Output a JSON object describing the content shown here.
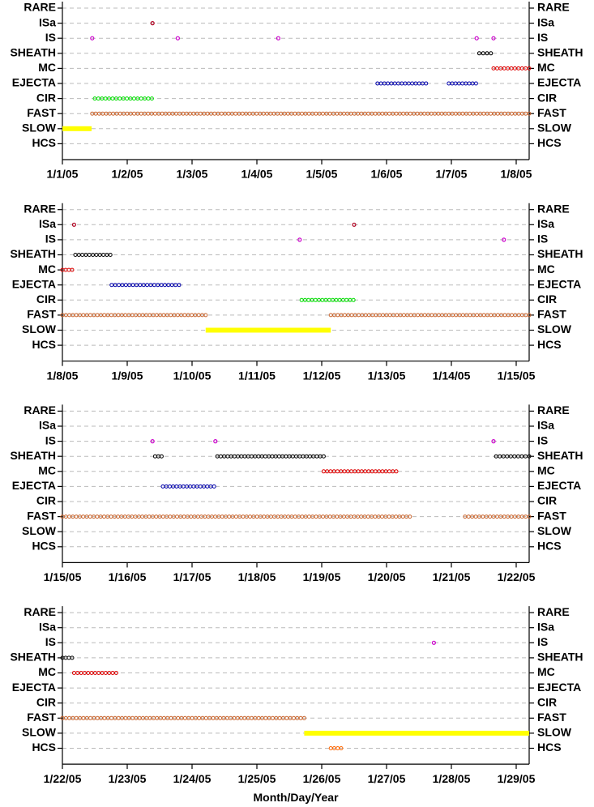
{
  "chart_data": [
    {
      "type": "timeline",
      "categories": [
        "RARE",
        "ISa",
        "IS",
        "SHEATH",
        "MC",
        "EJECTA",
        "CIR",
        "FAST",
        "SLOW",
        "HCS"
      ],
      "xlim": [
        0,
        7.2
      ],
      "xticks": [
        {
          "value": 0,
          "label": "1/1/05"
        },
        {
          "value": 1,
          "label": "1/2/05"
        },
        {
          "value": 2,
          "label": "1/3/05"
        },
        {
          "value": 3,
          "label": "1/4/05"
        },
        {
          "value": 4,
          "label": "1/5/05"
        },
        {
          "value": 5,
          "label": "1/6/05"
        },
        {
          "value": 6,
          "label": "1/7/05"
        },
        {
          "value": 7,
          "label": "1/8/05"
        }
      ],
      "grid": true,
      "series": [
        {
          "row": 1,
          "color": "#b00020",
          "points": [
            1.39
          ]
        },
        {
          "row": 2,
          "color": "#cc00cc",
          "points": [
            0.46,
            1.78,
            3.33,
            6.39,
            6.65
          ]
        },
        {
          "row": 3,
          "color": "#000000",
          "intervals": [
            [
              6.43,
              6.61
            ]
          ]
        },
        {
          "row": 4,
          "color": "#dd0000",
          "intervals": [
            [
              6.65,
              7.2
            ]
          ]
        },
        {
          "row": 5,
          "color": "#0000aa",
          "intervals": [
            [
              4.86,
              5.61
            ],
            [
              5.96,
              6.38
            ]
          ]
        },
        {
          "row": 6,
          "color": "#00dd00",
          "intervals": [
            [
              0.5,
              1.38
            ]
          ]
        },
        {
          "row": 7,
          "color": "#c8642d",
          "intervals": [
            [
              0.46,
              7.2
            ]
          ]
        },
        {
          "row": 8,
          "color": "#ffff00",
          "filled": true,
          "intervals": [
            [
              0,
              0.45
            ]
          ]
        }
      ]
    },
    {
      "type": "timeline",
      "categories": [
        "RARE",
        "ISa",
        "IS",
        "SHEATH",
        "MC",
        "EJECTA",
        "CIR",
        "FAST",
        "SLOW",
        "HCS"
      ],
      "xlim": [
        7,
        14.2
      ],
      "xticks": [
        {
          "value": 7,
          "label": "1/8/05"
        },
        {
          "value": 8,
          "label": "1/9/05"
        },
        {
          "value": 9,
          "label": "1/10/05"
        },
        {
          "value": 10,
          "label": "1/11/05"
        },
        {
          "value": 11,
          "label": "1/12/05"
        },
        {
          "value": 12,
          "label": "1/13/05"
        },
        {
          "value": 13,
          "label": "1/14/05"
        },
        {
          "value": 14,
          "label": "1/15/05"
        }
      ],
      "grid": true,
      "series": [
        {
          "row": 1,
          "color": "#b00020",
          "points": [
            7.18,
            11.5
          ]
        },
        {
          "row": 2,
          "color": "#cc00cc",
          "points": [
            10.66,
            13.81
          ]
        },
        {
          "row": 3,
          "color": "#000000",
          "intervals": [
            [
              7.2,
              7.74
            ]
          ]
        },
        {
          "row": 4,
          "color": "#dd0000",
          "intervals": [
            [
              7,
              7.15
            ]
          ]
        },
        {
          "row": 5,
          "color": "#0000aa",
          "intervals": [
            [
              7.76,
              8.8
            ]
          ]
        },
        {
          "row": 6,
          "color": "#00dd00",
          "intervals": [
            [
              10.69,
              11.49
            ]
          ]
        },
        {
          "row": 7,
          "color": "#c8642d",
          "intervals": [
            [
              7,
              9.21
            ],
            [
              11.14,
              14.2
            ]
          ]
        },
        {
          "row": 8,
          "color": "#ffff00",
          "filled": true,
          "intervals": [
            [
              9.21,
              11.14
            ]
          ]
        }
      ]
    },
    {
      "type": "timeline",
      "categories": [
        "RARE",
        "ISa",
        "IS",
        "SHEATH",
        "MC",
        "EJECTA",
        "CIR",
        "FAST",
        "SLOW",
        "HCS"
      ],
      "xlim": [
        14,
        21.2
      ],
      "xticks": [
        {
          "value": 14,
          "label": "1/15/05"
        },
        {
          "value": 15,
          "label": "1/16/05"
        },
        {
          "value": 16,
          "label": "1/17/05"
        },
        {
          "value": 17,
          "label": "1/18/05"
        },
        {
          "value": 18,
          "label": "1/19/05"
        },
        {
          "value": 19,
          "label": "1/20/05"
        },
        {
          "value": 20,
          "label": "1/21/05"
        },
        {
          "value": 21,
          "label": "1/22/05"
        }
      ],
      "grid": true,
      "series": [
        {
          "row": 2,
          "color": "#cc00cc",
          "points": [
            15.39,
            16.36,
            20.65
          ]
        },
        {
          "row": 3,
          "color": "#000000",
          "intervals": [
            [
              15.43,
              15.53
            ],
            [
              16.39,
              18.03
            ],
            [
              20.69,
              21.2
            ]
          ]
        },
        {
          "row": 4,
          "color": "#dd0000",
          "intervals": [
            [
              18.03,
              19.15
            ]
          ]
        },
        {
          "row": 5,
          "color": "#0000aa",
          "intervals": [
            [
              15.55,
              16.34
            ]
          ]
        },
        {
          "row": 7,
          "color": "#c8642d",
          "intervals": [
            [
              14,
              19.36
            ],
            [
              20.21,
              21.2
            ]
          ]
        }
      ]
    },
    {
      "type": "timeline",
      "categories": [
        "RARE",
        "ISa",
        "IS",
        "SHEATH",
        "MC",
        "EJECTA",
        "CIR",
        "FAST",
        "SLOW",
        "HCS"
      ],
      "xlim": [
        21,
        28.2
      ],
      "xticks": [
        {
          "value": 21,
          "label": "1/22/05"
        },
        {
          "value": 22,
          "label": "1/23/05"
        },
        {
          "value": 23,
          "label": "1/24/05"
        },
        {
          "value": 24,
          "label": "1/25/05"
        },
        {
          "value": 25,
          "label": "1/26/05"
        },
        {
          "value": 26,
          "label": "1/27/05"
        },
        {
          "value": 27,
          "label": "1/28/05"
        },
        {
          "value": 28,
          "label": "1/29/05"
        }
      ],
      "xlabel": "Month/Day/Year",
      "grid": true,
      "series": [
        {
          "row": 2,
          "color": "#cc00cc",
          "points": [
            26.73
          ]
        },
        {
          "row": 3,
          "color": "#000000",
          "intervals": [
            [
              21,
              21.15
            ]
          ]
        },
        {
          "row": 4,
          "color": "#dd0000",
          "intervals": [
            [
              21.18,
              21.83
            ]
          ]
        },
        {
          "row": 7,
          "color": "#c8642d",
          "intervals": [
            [
              21,
              24.73
            ]
          ]
        },
        {
          "row": 8,
          "color": "#ffff00",
          "filled": true,
          "intervals": [
            [
              24.73,
              28.2
            ]
          ]
        },
        {
          "row": 9,
          "color": "#ff6600",
          "intervals": [
            [
              25.14,
              25.3
            ]
          ]
        }
      ]
    }
  ]
}
